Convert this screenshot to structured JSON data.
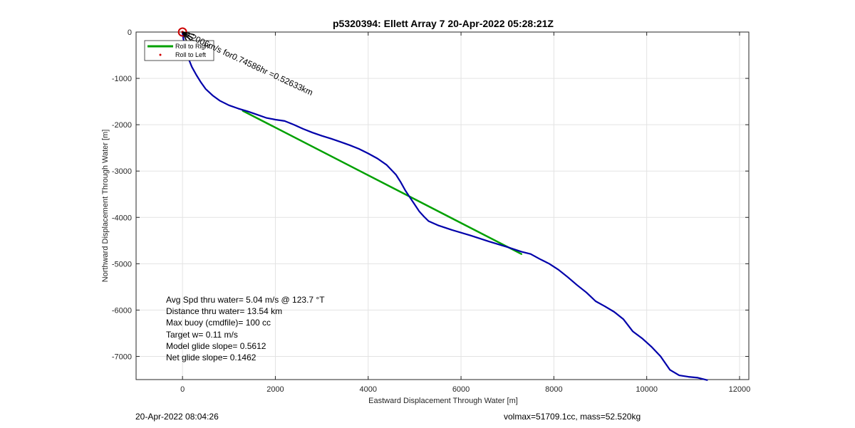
{
  "chart_data": {
    "type": "line",
    "title": "p5320394: Ellett Array 7 20-Apr-2022 05:28:21Z",
    "xlabel": "Eastward Displacement Through Water [m]",
    "ylabel": "Northward Displacement Through Water [m]",
    "xlim": [
      -1000,
      12200
    ],
    "ylim": [
      -7500,
      0
    ],
    "xticks": [
      0,
      2000,
      4000,
      6000,
      8000,
      10000,
      12000
    ],
    "yticks": [
      0,
      -1000,
      -2000,
      -3000,
      -4000,
      -5000,
      -6000,
      -7000
    ],
    "grid": true,
    "legend": {
      "placement": "top-left",
      "entries": [
        "Roll to Right",
        "Roll to Left"
      ]
    },
    "series": [
      {
        "name": "",
        "color": "#0000aa",
        "x": [
          0,
          20,
          60,
          120,
          200,
          300,
          400,
          500,
          650,
          800,
          1000,
          1200,
          1400,
          1600,
          1800,
          2000,
          2200,
          2400,
          2600,
          2800,
          3000,
          3200,
          3400,
          3600,
          3800,
          4000,
          4200,
          4400,
          4600,
          4700,
          4800,
          4900,
          5000,
          5100,
          5200,
          5300,
          5500,
          5800,
          6200,
          6600,
          7000,
          7300,
          7500,
          7700,
          7900,
          8100,
          8300,
          8500,
          8700,
          8900,
          9100,
          9300,
          9500,
          9700,
          9900,
          10100,
          10300,
          10500,
          10700,
          10900,
          11100,
          11300
        ],
        "y": [
          -30,
          -150,
          -350,
          -550,
          -750,
          -930,
          -1090,
          -1230,
          -1370,
          -1480,
          -1580,
          -1650,
          -1710,
          -1780,
          -1850,
          -1890,
          -1920,
          -2000,
          -2090,
          -2170,
          -2240,
          -2300,
          -2370,
          -2440,
          -2520,
          -2620,
          -2730,
          -2870,
          -3080,
          -3240,
          -3420,
          -3570,
          -3720,
          -3870,
          -3980,
          -4080,
          -4170,
          -4270,
          -4390,
          -4520,
          -4640,
          -4740,
          -4790,
          -4900,
          -5000,
          -5130,
          -5290,
          -5460,
          -5620,
          -5810,
          -5920,
          -6040,
          -6200,
          -6460,
          -6610,
          -6790,
          -7000,
          -7290,
          -7410,
          -7440,
          -7460,
          -7510
        ]
      },
      {
        "name": "",
        "color": "#00a000",
        "x": [
          1300,
          7300
        ],
        "y": [
          -1700,
          -4790
        ]
      }
    ],
    "annotations": [
      {
        "text": "0.2006m/s for0.74586hr =0.52633km",
        "x": 0,
        "y": 0,
        "angle_deg": 25
      }
    ],
    "stats": [
      "Avg Spd thru water=  5.04 m/s @ 123.7 °T",
      "Distance thru water= 13.54 km",
      "Max buoy (cmdfile)= 100 cc",
      "Target w= 0.11 m/s",
      "Model glide slope= 0.5612",
      "Net glide slope= 0.1462"
    ]
  },
  "footer": {
    "left": "20-Apr-2022 08:04:26",
    "right": "volmax=51709.1cc, mass=52.520kg"
  }
}
